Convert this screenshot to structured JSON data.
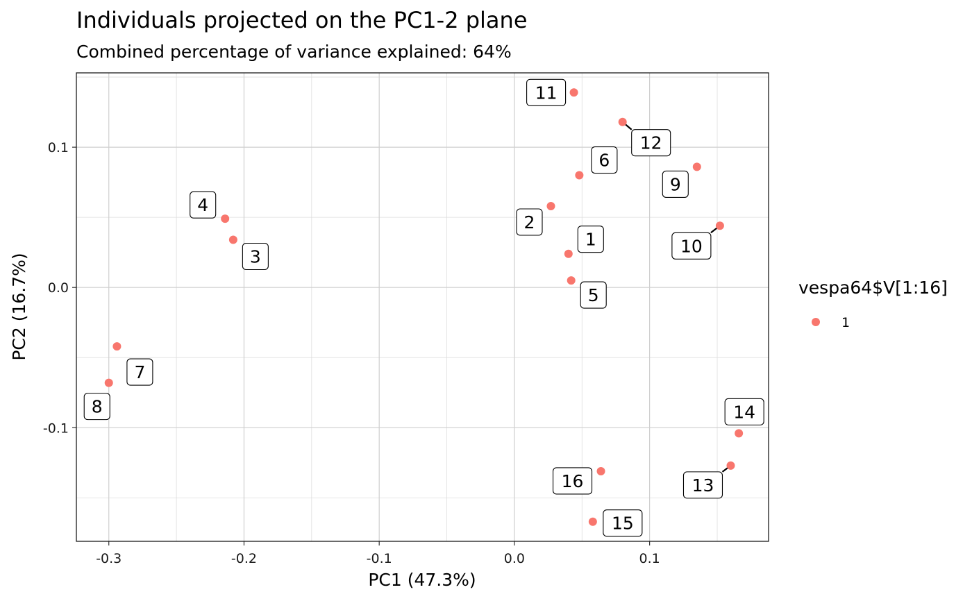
{
  "chart_data": {
    "type": "scatter",
    "title": "Individuals projected on the PC1-2 plane",
    "subtitle": "Combined percentage of variance explained: 64%",
    "xlabel": "PC1 (47.3%)",
    "ylabel": "PC2 (16.7%)",
    "xlim": [
      -0.324,
      0.188
    ],
    "ylim": [
      -0.181,
      0.153
    ],
    "x_ticks": [
      -0.3,
      -0.2,
      -0.1,
      0.0,
      0.1
    ],
    "x_tick_labels": [
      "-0.3",
      "-0.2",
      "-0.1",
      "0.0",
      "0.1"
    ],
    "y_ticks": [
      -0.1,
      0.0,
      0.1
    ],
    "y_tick_labels": [
      "-0.1",
      "0.0",
      "0.1"
    ],
    "grid": true,
    "legend": {
      "title": "vespa64$V[1:16]",
      "position": "right",
      "entries": [
        {
          "label": "1",
          "color": "#F8766D"
        }
      ]
    },
    "point_color": "#F8766D",
    "points": [
      {
        "label": "1",
        "x": 0.04,
        "y": 0.024
      },
      {
        "label": "2",
        "x": 0.027,
        "y": 0.058
      },
      {
        "label": "3",
        "x": -0.208,
        "y": 0.034
      },
      {
        "label": "4",
        "x": -0.214,
        "y": 0.049
      },
      {
        "label": "5",
        "x": 0.042,
        "y": 0.005
      },
      {
        "label": "6",
        "x": 0.048,
        "y": 0.08
      },
      {
        "label": "7",
        "x": -0.294,
        "y": -0.042
      },
      {
        "label": "8",
        "x": -0.3,
        "y": -0.068
      },
      {
        "label": "9",
        "x": 0.135,
        "y": 0.086
      },
      {
        "label": "10",
        "x": 0.152,
        "y": 0.044
      },
      {
        "label": "11",
        "x": 0.044,
        "y": 0.139
      },
      {
        "label": "12",
        "x": 0.08,
        "y": 0.118
      },
      {
        "label": "13",
        "x": 0.16,
        "y": -0.127
      },
      {
        "label": "14",
        "x": 0.166,
        "y": -0.104
      },
      {
        "label": "15",
        "x": 0.058,
        "y": -0.167
      },
      {
        "label": "16",
        "x": 0.064,
        "y": -0.131
      }
    ]
  }
}
